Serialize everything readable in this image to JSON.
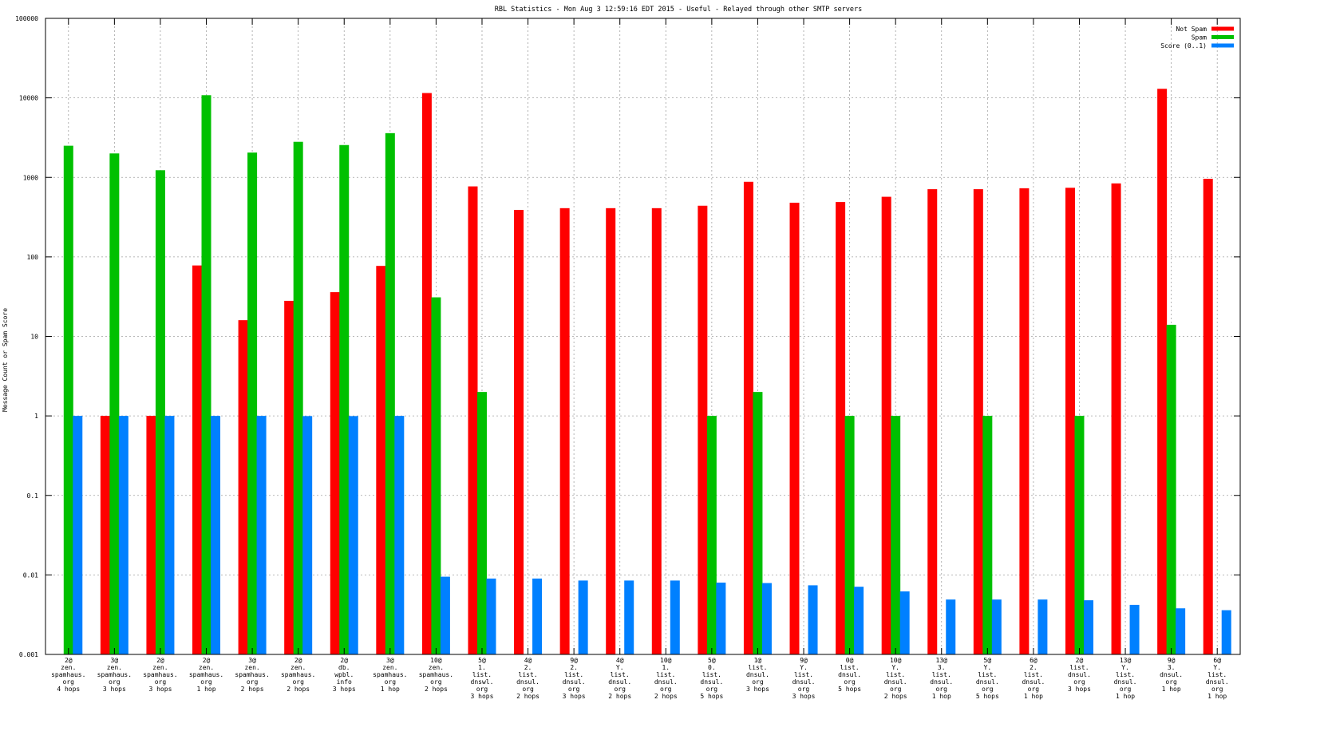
{
  "chart_data": {
    "type": "bar",
    "title": "RBL Statistics - Mon Aug  3 12:59:16 EDT 2015 - Useful - Relayed through other SMTP servers",
    "xlabel": "",
    "ylabel": "Message Count or Spam Score",
    "yscale": "log",
    "ylim": [
      0.001,
      100000
    ],
    "yticks": [
      "0.001",
      "0.01",
      "0.1",
      "1",
      "10",
      "100",
      "1000",
      "10000",
      "100000"
    ],
    "grid": true,
    "legend_position": "top-right",
    "categories": [
      [
        "2@",
        "zen.",
        "spamhaus.",
        "org",
        "4 hops"
      ],
      [
        "3@",
        "zen.",
        "spamhaus.",
        "org",
        "3 hops"
      ],
      [
        "2@",
        "zen.",
        "spamhaus.",
        "org",
        "3 hops"
      ],
      [
        "2@",
        "zen.",
        "spamhaus.",
        "org",
        "1 hop"
      ],
      [
        "3@",
        "zen.",
        "spamhaus.",
        "org",
        "2 hops"
      ],
      [
        "2@",
        "zen.",
        "spamhaus.",
        "org",
        "2 hops"
      ],
      [
        "2@",
        "db.",
        "wpbl.",
        "info",
        "3 hops"
      ],
      [
        "3@",
        "zen.",
        "spamhaus.",
        "org",
        "1 hop"
      ],
      [
        "10@",
        "zen.",
        "spamhaus.",
        "org",
        "2 hops"
      ],
      [
        "5@",
        "1.",
        "list.",
        "dnswl.",
        "org",
        "3 hops"
      ],
      [
        "4@",
        "2.",
        "list.",
        "dnsul.",
        "org",
        "2 hops"
      ],
      [
        "9@",
        "2.",
        "list.",
        "dnsul.",
        "org",
        "3 hops"
      ],
      [
        "4@",
        "Y.",
        "list.",
        "dnsul.",
        "org",
        "2 hops"
      ],
      [
        "10@",
        "1.",
        "list.",
        "dnsul.",
        "org",
        "2 hops"
      ],
      [
        "5@",
        "0.",
        "list.",
        "dnsul.",
        "org",
        "5 hops"
      ],
      [
        "1@",
        "list.",
        "dnsul.",
        "org",
        "3 hops"
      ],
      [
        "9@",
        "Y.",
        "list.",
        "dnsul.",
        "org",
        "3 hops"
      ],
      [
        "0@",
        "list.",
        "dnsul.",
        "org",
        "5 hops"
      ],
      [
        "10@",
        "Y.",
        "list.",
        "dnsul.",
        "org",
        "2 hops"
      ],
      [
        "13@",
        "3.",
        "list.",
        "dnsul.",
        "org",
        "1 hop"
      ],
      [
        "5@",
        "Y.",
        "list.",
        "dnsul.",
        "org",
        "5 hops"
      ],
      [
        "6@",
        "2.",
        "list.",
        "dnsul.",
        "org",
        "1 hop"
      ],
      [
        "2@",
        "list.",
        "dnsul.",
        "org",
        "3 hops"
      ],
      [
        "13@",
        "Y.",
        "list.",
        "dnsul.",
        "org",
        "1 hop"
      ],
      [
        "9@",
        "3.",
        "dnsul.",
        "org",
        "1 hop"
      ],
      [
        "6@",
        "Y.",
        "list.",
        "dnsul.",
        "org",
        "1 hop"
      ]
    ],
    "series": [
      {
        "name": "Not Spam",
        "color": "#ff0000",
        "values": [
          null,
          1,
          1,
          78,
          16,
          28,
          36,
          77,
          11500,
          770,
          390,
          410,
          410,
          410,
          440,
          880,
          480,
          490,
          570,
          710,
          710,
          730,
          740,
          840,
          13000,
          960
        ]
      },
      {
        "name": "Spam",
        "color": "#00c000",
        "values": [
          2500,
          2000,
          1230,
          10800,
          2050,
          2800,
          2550,
          3600,
          31,
          2,
          null,
          null,
          null,
          null,
          1,
          2,
          null,
          1,
          1,
          null,
          1,
          null,
          1,
          null,
          14,
          null
        ]
      },
      {
        "name": "Score (0..1)",
        "color": "#0080ff",
        "values": [
          1,
          1,
          1,
          1,
          1,
          0.995,
          0.995,
          1,
          0.0095,
          0.009,
          0.009,
          0.0085,
          0.0085,
          0.0085,
          0.008,
          0.0079,
          0.0074,
          0.0071,
          0.0062,
          0.0049,
          0.0049,
          0.0049,
          0.0048,
          0.0042,
          0.0038,
          0.0036
        ]
      }
    ]
  }
}
